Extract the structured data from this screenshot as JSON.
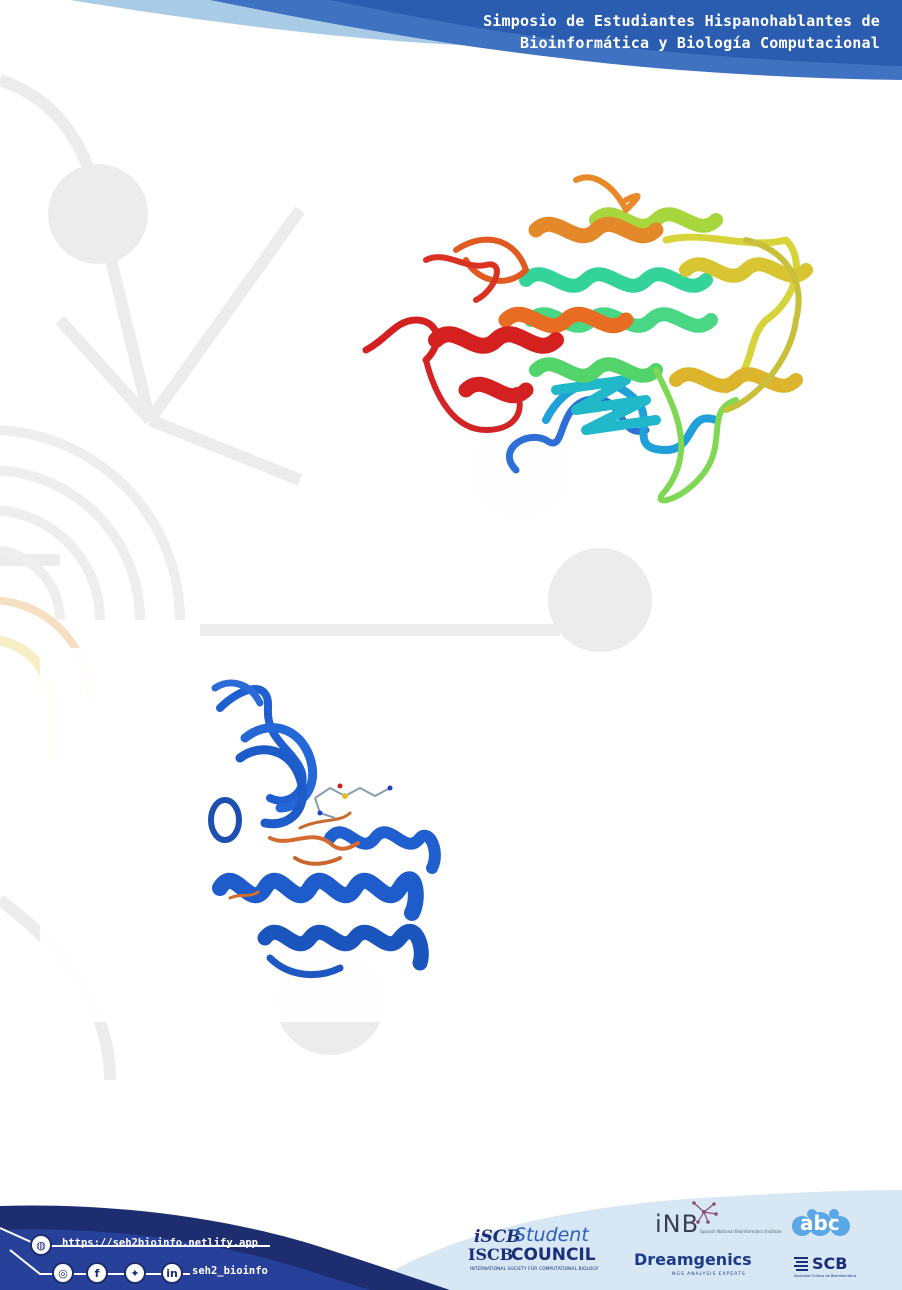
{
  "header": {
    "title_line1": "Simposio de Estudiantes Hispanohablantes de",
    "title_line2": "Bioinformática y Biología Computacional"
  },
  "figures": {
    "top_structure": "protein-ribbon-rainbow",
    "bottom_structure": "protein-ribbon-blue-with-ligand"
  },
  "footer": {
    "website": "https://seh2bioinfo.netlify.app",
    "social_handle": "seh2_bioinfo",
    "icons": [
      "globe-icon",
      "instagram-icon",
      "facebook-icon",
      "twitter-icon",
      "linkedin-icon"
    ],
    "logos": {
      "iscb_mark": "iSCB",
      "student": "Student",
      "council": "COUNCIL",
      "council_mark": "ISCB",
      "council_sub": "INTERNATIONAL SOCIETY FOR COMPUTATIONAL BIOLOGY",
      "inb": "iNB",
      "inb_sub": "Spanish National Bioinformatics Institute",
      "dreamgenics": "Dreamgenics",
      "dreamgenics_sub": "NGS ANALYSIS EXPERTS",
      "abc": "abc",
      "scb": "SCB",
      "scb_sub": "Sociedad Chilena de Bioinformática"
    }
  },
  "colors": {
    "header_dark": "#2a5cb0",
    "header_light": "#9ec6e6",
    "footer_dark": "#1d2d70",
    "footer_light": "#cfe2f1",
    "circuit": "#e6e6e6"
  }
}
